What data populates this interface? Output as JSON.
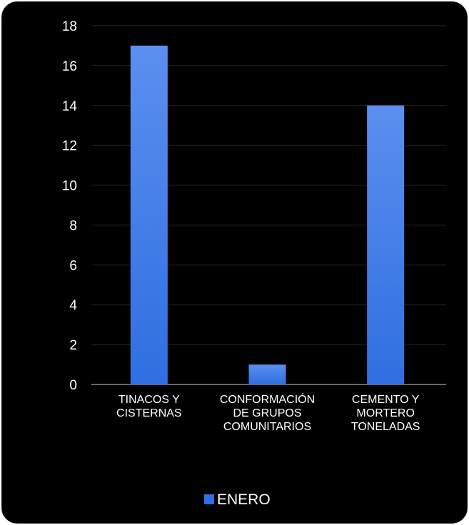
{
  "chart_data": {
    "type": "bar",
    "categories": [
      [
        "TINACOS Y",
        "CISTERNAS"
      ],
      [
        "CONFORMACIÓN",
        "DE GRUPOS",
        "COMUNITARIOS"
      ],
      [
        "CEMENTO Y",
        "MORTERO",
        "TONELADAS"
      ]
    ],
    "series": [
      {
        "name": "ENERO",
        "values": [
          17,
          1,
          14
        ]
      }
    ],
    "ylim": [
      0,
      18
    ],
    "yticks": [
      0,
      2,
      4,
      6,
      8,
      10,
      12,
      14,
      16,
      18
    ],
    "grid": true,
    "legend_position": "bottom",
    "colors": {
      "bar_top": "#5b8fef",
      "bar_bottom": "#2f6fe0",
      "background": "#000000",
      "gridline": "#2a2a2a",
      "axis": "#8c8c8c",
      "text": "#ffffff"
    }
  }
}
